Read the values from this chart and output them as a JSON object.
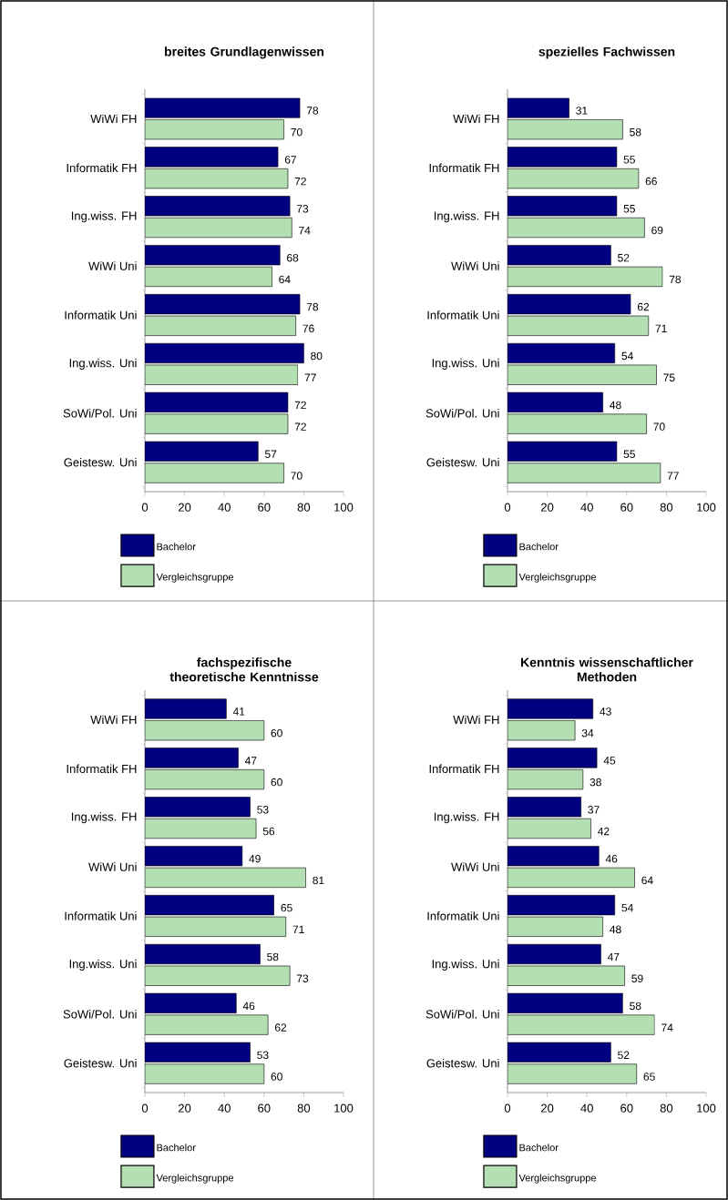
{
  "chart_data": [
    {
      "type": "bar",
      "orientation": "horizontal",
      "title": "breites Grundlagenwissen",
      "categories": [
        "WiWi FH",
        "Informatik FH",
        "Ing.wiss. FH",
        "WiWi Uni",
        "Informatik Uni",
        "Ing.wiss. Uni",
        "SoWi/Pol. Uni",
        "Geistesw. Uni"
      ],
      "series": [
        {
          "name": "Bachelor",
          "color": "#000080",
          "values": [
            78,
            67,
            73,
            68,
            78,
            80,
            72,
            57
          ]
        },
        {
          "name": "Vergleichsgruppe",
          "color": "#b3dfb3",
          "values": [
            70,
            72,
            74,
            64,
            76,
            77,
            72,
            70
          ]
        }
      ],
      "xlim": [
        0,
        100
      ],
      "xticks": [
        0,
        20,
        40,
        60,
        80,
        100
      ],
      "data_labels": true,
      "legend": "bottom",
      "grid": false
    },
    {
      "type": "bar",
      "orientation": "horizontal",
      "title": "spezielles Fachwissen",
      "categories": [
        "WiWi FH",
        "Informatik FH",
        "Ing.wiss. FH",
        "WiWi Uni",
        "Informatik Uni",
        "Ing.wiss. Uni",
        "SoWi/Pol. Uni",
        "Geistesw. Uni"
      ],
      "series": [
        {
          "name": "Bachelor",
          "color": "#000080",
          "values": [
            31,
            55,
            55,
            52,
            62,
            54,
            48,
            55
          ]
        },
        {
          "name": "Vergleichsgruppe",
          "color": "#b3dfb3",
          "values": [
            58,
            66,
            69,
            78,
            71,
            75,
            70,
            77
          ]
        }
      ],
      "xlim": [
        0,
        100
      ],
      "xticks": [
        0,
        20,
        40,
        60,
        80,
        100
      ],
      "data_labels": true,
      "legend": "bottom",
      "grid": false
    },
    {
      "type": "bar",
      "orientation": "horizontal",
      "title": "fachspezifische theoretische Kenntnisse",
      "categories": [
        "WiWi FH",
        "Informatik FH",
        "Ing.wiss. FH",
        "WiWi Uni",
        "Informatik Uni",
        "Ing.wiss. Uni",
        "SoWi/Pol. Uni",
        "Geistesw. Uni"
      ],
      "series": [
        {
          "name": "Bachelor",
          "color": "#000080",
          "values": [
            41,
            47,
            53,
            49,
            65,
            58,
            46,
            53
          ]
        },
        {
          "name": "Vergleichsgruppe",
          "color": "#b3dfb3",
          "values": [
            60,
            60,
            56,
            81,
            71,
            73,
            62,
            60
          ]
        }
      ],
      "xlim": [
        0,
        100
      ],
      "xticks": [
        0,
        20,
        40,
        60,
        80,
        100
      ],
      "data_labels": true,
      "legend": "bottom",
      "grid": false
    },
    {
      "type": "bar",
      "orientation": "horizontal",
      "title": "Kenntnis wissenschaftlicher Methoden",
      "categories": [
        "WiWi FH",
        "Informatik FH",
        "Ing.wiss. FH",
        "WiWi Uni",
        "Informatik Uni",
        "Ing.wiss. Uni",
        "SoWi/Pol. Uni",
        "Geistesw. Uni"
      ],
      "series": [
        {
          "name": "Bachelor",
          "color": "#000080",
          "values": [
            43,
            45,
            37,
            46,
            54,
            47,
            58,
            52
          ]
        },
        {
          "name": "Vergleichsgruppe",
          "color": "#b3dfb3",
          "values": [
            34,
            38,
            42,
            64,
            48,
            59,
            74,
            65
          ]
        }
      ],
      "xlim": [
        0,
        100
      ],
      "xticks": [
        0,
        20,
        40,
        60,
        80,
        100
      ],
      "data_labels": true,
      "legend": "bottom",
      "grid": false
    }
  ]
}
